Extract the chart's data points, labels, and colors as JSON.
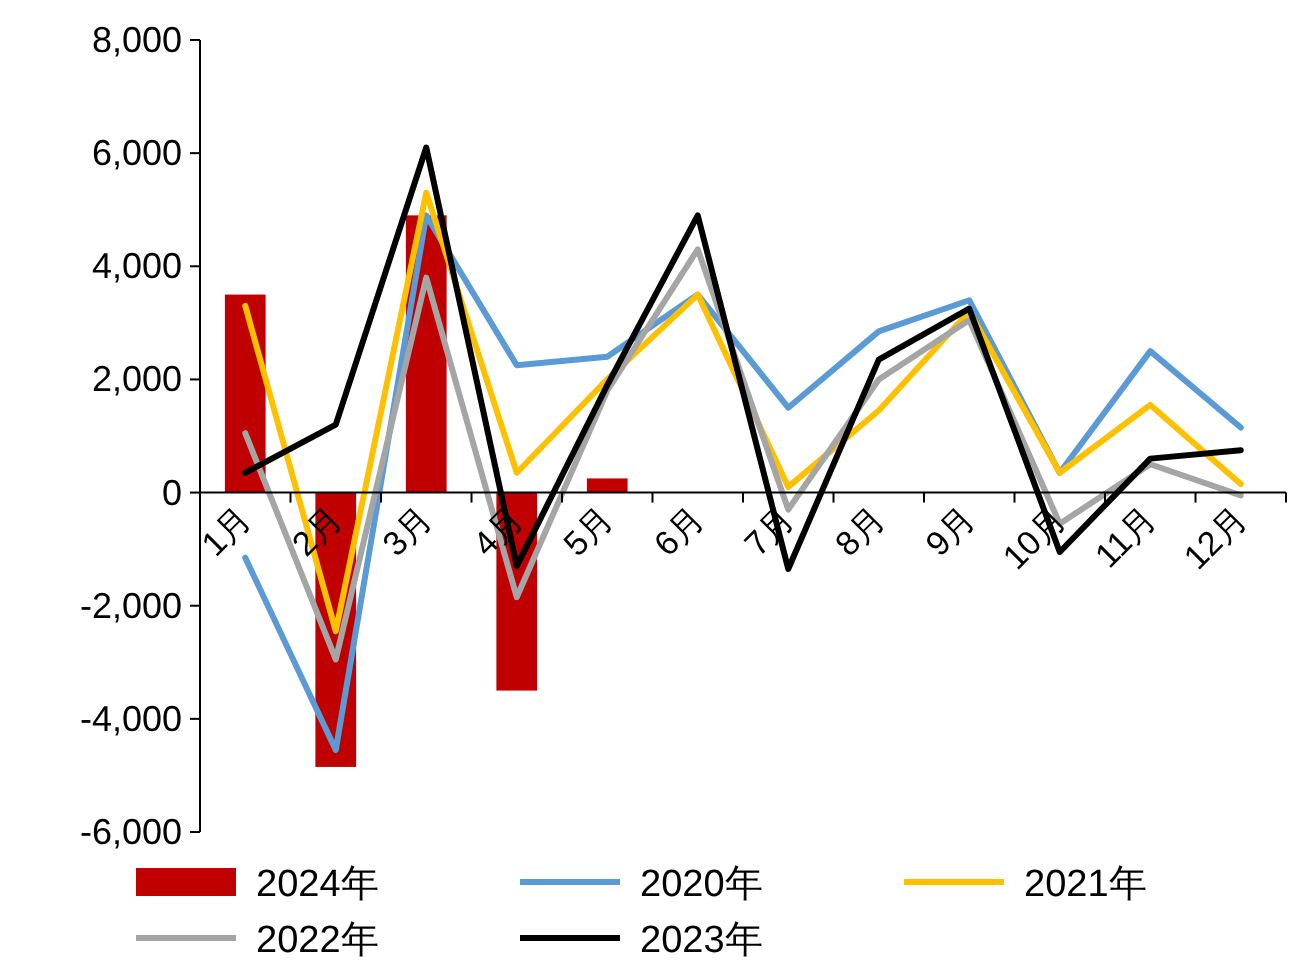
{
  "chart_data": {
    "type": "line",
    "categories": [
      "1月",
      "2月",
      "3月",
      "4月",
      "5月",
      "6月",
      "7月",
      "8月",
      "9月",
      "10月",
      "11月",
      "12月"
    ],
    "series": [
      {
        "name": "2024年",
        "type": "bar",
        "color": "#c00000",
        "values": [
          3500,
          -4850,
          4900,
          -3500,
          250,
          null,
          null,
          null,
          null,
          null,
          null,
          null
        ]
      },
      {
        "name": "2020年",
        "color": "#5b9bd5",
        "values": [
          -1150,
          -4550,
          4900,
          2250,
          2400,
          3500,
          1500,
          2850,
          3400,
          350,
          2500,
          1150
        ]
      },
      {
        "name": "2021年",
        "color": "#ffc000",
        "values": [
          3300,
          -2450,
          5300,
          350,
          2000,
          3500,
          100,
          1450,
          3200,
          350,
          1550,
          150
        ]
      },
      {
        "name": "2022年",
        "color": "#a5a5a5",
        "values": [
          1050,
          -2950,
          3800,
          -1850,
          1800,
          4300,
          -300,
          2000,
          3050,
          -550,
          500,
          -50
        ]
      },
      {
        "name": "2023年",
        "color": "#000000",
        "values": [
          350,
          1200,
          6100,
          -1300,
          1900,
          4900,
          -1350,
          2350,
          3250,
          -1050,
          600,
          750
        ]
      }
    ],
    "ylim": [
      -6000,
      8000
    ],
    "yticks": [
      {
        "value": -6000,
        "label": "-6,000"
      },
      {
        "value": -4000,
        "label": "-4,000"
      },
      {
        "value": -2000,
        "label": "-2,000"
      },
      0,
      {
        "value": 2000,
        "label": "2,000"
      },
      {
        "value": 4000,
        "label": "4,000"
      },
      {
        "value": 6000,
        "label": "6,000"
      },
      {
        "value": 8000,
        "label": "8,000"
      }
    ],
    "grid": false,
    "legend": "bottom"
  }
}
